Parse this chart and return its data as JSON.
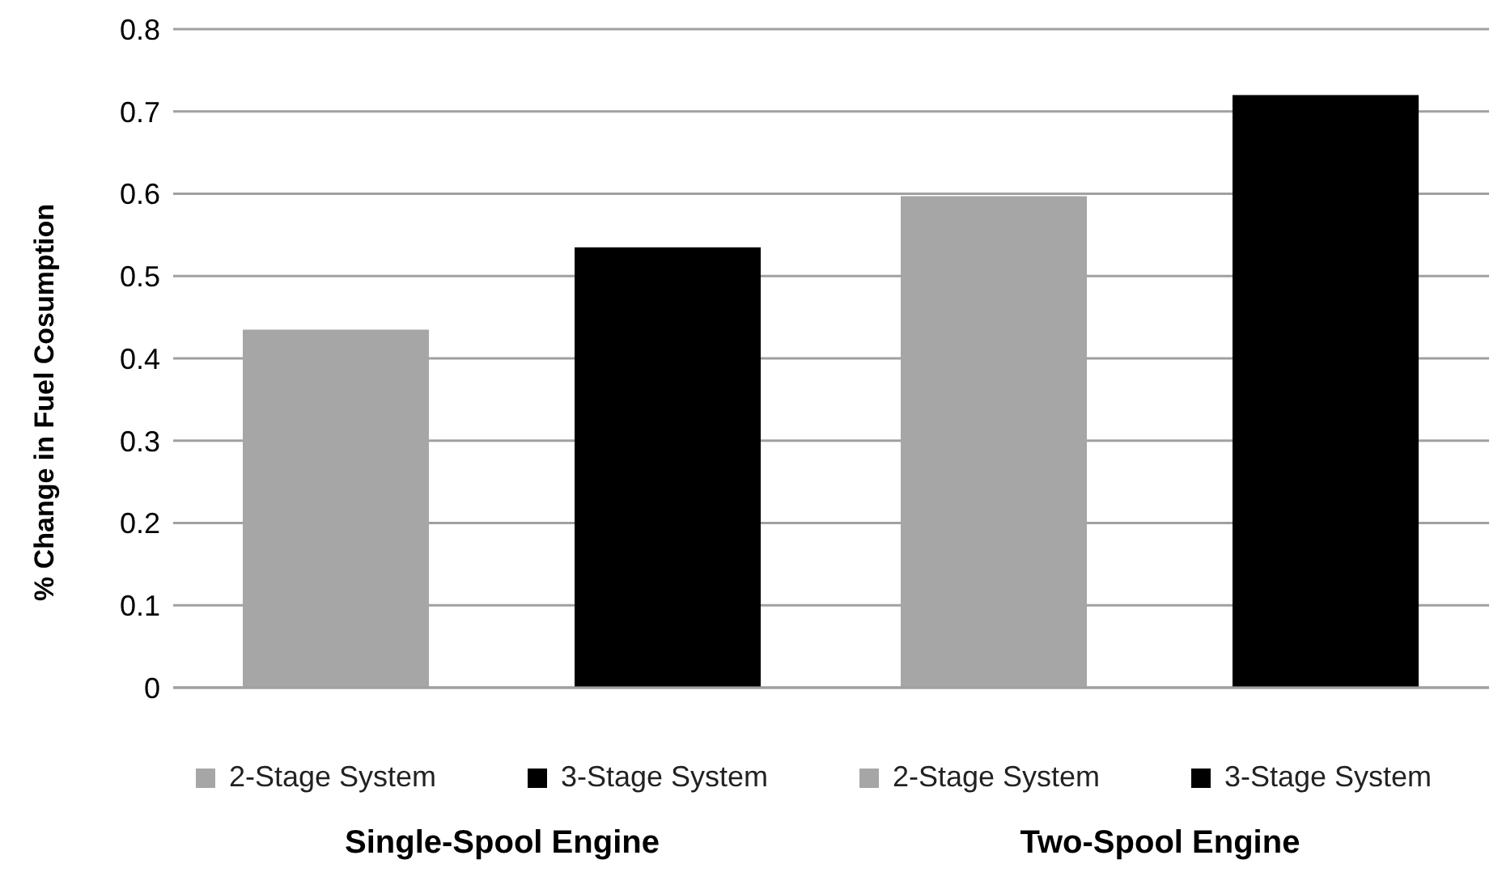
{
  "chart_data": {
    "type": "bar",
    "ylabel": "% Change in  Fuel  Cosumption",
    "categories": [
      "Single-Spool Engine",
      "Two-Spool Engine"
    ],
    "series": [
      {
        "name": "2-Stage System",
        "color": "#a6a6a6",
        "values": [
          0.435,
          0.597
        ]
      },
      {
        "name": "3-Stage System",
        "color": "#000000",
        "values": [
          0.535,
          0.72
        ]
      }
    ],
    "ylim": [
      0,
      0.8
    ],
    "yticks": [
      0,
      0.1,
      0.2,
      0.3,
      0.4,
      0.5,
      0.6,
      0.7,
      0.8
    ],
    "grid": "y",
    "legend": "bottom"
  }
}
